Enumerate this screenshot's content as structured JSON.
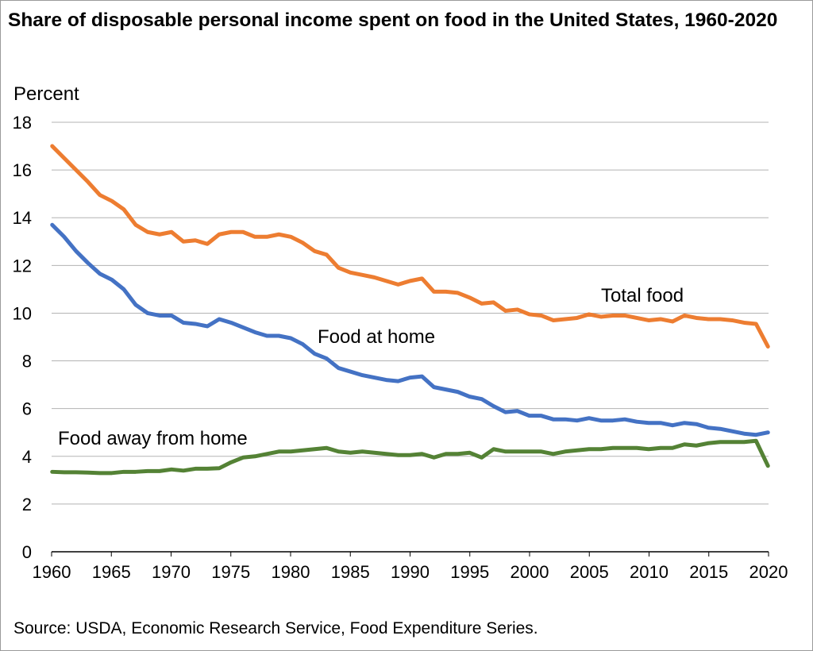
{
  "title": "Share of disposable personal income spent on food in the United States, 1960-2020",
  "source": "Source: USDA, Economic Research Service, Food Expenditure Series.",
  "chart_data": {
    "type": "line",
    "title": "Share of disposable personal income spent on food in the United States, 1960-2020",
    "xlabel": "",
    "ylabel": "Percent",
    "xlim": [
      1960,
      2020
    ],
    "ylim": [
      0,
      18
    ],
    "x_ticks": [
      1960,
      1965,
      1970,
      1975,
      1980,
      1985,
      1990,
      1995,
      2000,
      2005,
      2010,
      2015,
      2020
    ],
    "y_ticks": [
      0,
      2,
      4,
      6,
      8,
      10,
      12,
      14,
      16,
      18
    ],
    "grid": "horizontal",
    "x_start": 1960,
    "series": [
      {
        "name": "Total food",
        "color": "#ED7D31",
        "values": [
          17.0,
          16.5,
          16.0,
          15.5,
          14.95,
          14.7,
          14.35,
          13.7,
          13.4,
          13.3,
          13.4,
          13.0,
          13.05,
          12.9,
          13.3,
          13.4,
          13.4,
          13.2,
          13.2,
          13.3,
          13.2,
          12.95,
          12.6,
          12.45,
          11.9,
          11.7,
          11.6,
          11.5,
          11.35,
          11.2,
          11.35,
          11.45,
          10.9,
          10.9,
          10.85,
          10.65,
          10.4,
          10.45,
          10.1,
          10.15,
          9.95,
          9.9,
          9.7,
          9.75,
          9.8,
          9.95,
          9.85,
          9.9,
          9.9,
          9.8,
          9.7,
          9.75,
          9.65,
          9.9,
          9.8,
          9.75,
          9.75,
          9.7,
          9.6,
          9.55,
          8.6
        ]
      },
      {
        "name": "Food at home",
        "color": "#4472C4",
        "values": [
          13.7,
          13.2,
          12.6,
          12.1,
          11.65,
          11.4,
          11.0,
          10.35,
          10.0,
          9.9,
          9.9,
          9.6,
          9.55,
          9.45,
          9.75,
          9.6,
          9.4,
          9.2,
          9.05,
          9.05,
          8.95,
          8.7,
          8.3,
          8.1,
          7.7,
          7.55,
          7.4,
          7.3,
          7.2,
          7.15,
          7.3,
          7.35,
          6.9,
          6.8,
          6.7,
          6.5,
          6.4,
          6.1,
          5.85,
          5.9,
          5.7,
          5.7,
          5.55,
          5.55,
          5.5,
          5.6,
          5.5,
          5.5,
          5.55,
          5.45,
          5.4,
          5.4,
          5.3,
          5.4,
          5.35,
          5.2,
          5.15,
          5.05,
          4.95,
          4.9,
          5.0
        ]
      },
      {
        "name": "Food away from home",
        "color": "#548235",
        "values": [
          3.35,
          3.33,
          3.33,
          3.32,
          3.3,
          3.3,
          3.35,
          3.35,
          3.38,
          3.38,
          3.45,
          3.4,
          3.48,
          3.48,
          3.5,
          3.75,
          3.95,
          4.0,
          4.1,
          4.2,
          4.2,
          4.25,
          4.3,
          4.35,
          4.2,
          4.15,
          4.2,
          4.15,
          4.1,
          4.05,
          4.05,
          4.1,
          3.95,
          4.1,
          4.1,
          4.15,
          3.95,
          4.3,
          4.2,
          4.2,
          4.2,
          4.2,
          4.1,
          4.2,
          4.25,
          4.3,
          4.3,
          4.35,
          4.35,
          4.35,
          4.3,
          4.35,
          4.35,
          4.5,
          4.45,
          4.55,
          4.6,
          4.6,
          4.6,
          4.65,
          3.6
        ]
      }
    ]
  }
}
